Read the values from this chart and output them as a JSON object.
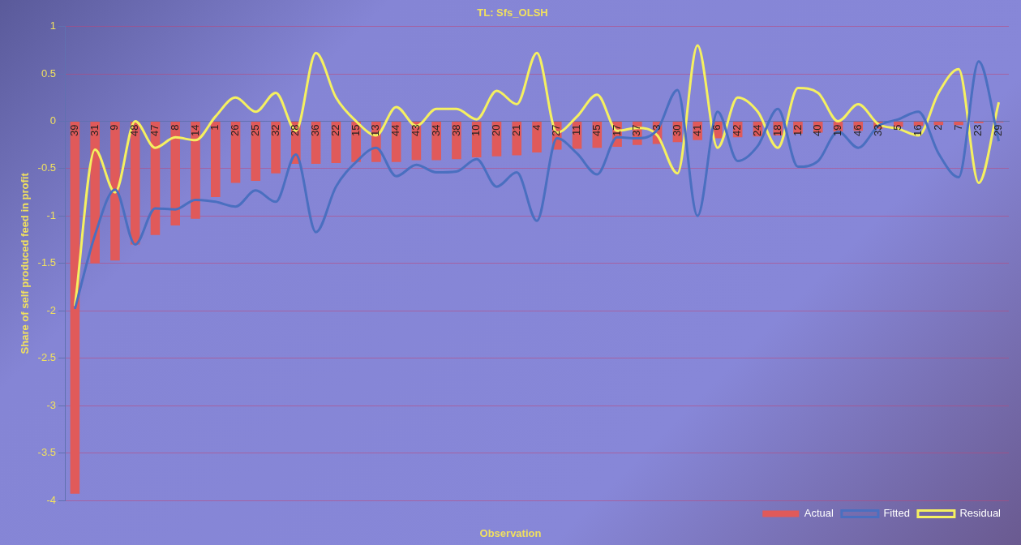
{
  "chart_data": {
    "type": "bar",
    "title": "TL: Sfs_OLSH",
    "xlabel": "Observation",
    "ylabel": "Share of self produced feed in profit",
    "categories": [
      "39",
      "31",
      "9",
      "48",
      "47",
      "8",
      "14",
      "1",
      "26",
      "25",
      "32",
      "28",
      "36",
      "22",
      "15",
      "13",
      "44",
      "43",
      "34",
      "38",
      "10",
      "20",
      "21",
      "4",
      "27",
      "11",
      "45",
      "17",
      "37",
      "3",
      "30",
      "41",
      "6",
      "42",
      "24",
      "18",
      "12",
      "40",
      "19",
      "46",
      "33",
      "5",
      "16",
      "2",
      "7",
      "23",
      "29"
    ],
    "series": [
      {
        "name": "Actual",
        "color": "#e05a5a",
        "values": [
          -3.93,
          -1.5,
          -1.47,
          -1.3,
          -1.2,
          -1.1,
          -1.03,
          -0.8,
          -0.65,
          -0.63,
          -0.55,
          -0.45,
          -0.45,
          -0.44,
          -0.43,
          -0.43,
          -0.43,
          -0.41,
          -0.41,
          -0.4,
          -0.38,
          -0.37,
          -0.36,
          -0.33,
          -0.3,
          -0.29,
          -0.28,
          -0.27,
          -0.25,
          -0.24,
          -0.22,
          -0.2,
          -0.18,
          -0.17,
          -0.16,
          -0.15,
          -0.13,
          -0.12,
          -0.11,
          -0.1,
          -0.08,
          -0.06,
          -0.05,
          -0.04,
          -0.04,
          -0.02,
          -0.01
        ]
      },
      {
        "name": "Fitted",
        "type": "line",
        "color": "#4a6fc0",
        "values": [
          -1.98,
          -1.2,
          -0.72,
          -1.3,
          -0.92,
          -0.93,
          -0.83,
          -0.85,
          -0.9,
          -0.73,
          -0.85,
          -0.35,
          -1.17,
          -0.69,
          -0.43,
          -0.28,
          -0.58,
          -0.46,
          -0.54,
          -0.53,
          -0.4,
          -0.69,
          -0.54,
          -1.05,
          -0.18,
          -0.34,
          -0.56,
          -0.17,
          -0.18,
          -0.09,
          0.33,
          -1.0,
          0.1,
          -0.42,
          -0.26,
          0.13,
          -0.48,
          -0.42,
          -0.11,
          -0.28,
          -0.05,
          0.02,
          0.1,
          -0.34,
          -0.59,
          0.63,
          -0.21
        ]
      },
      {
        "name": "Residual",
        "type": "line",
        "color": "#f5f060",
        "values": [
          -1.95,
          -0.3,
          -0.75,
          0.0,
          -0.28,
          -0.17,
          -0.2,
          0.05,
          0.25,
          0.1,
          0.3,
          -0.1,
          0.72,
          0.25,
          0.0,
          -0.15,
          0.15,
          -0.05,
          0.13,
          0.13,
          0.02,
          0.32,
          0.18,
          0.72,
          -0.12,
          0.05,
          0.28,
          -0.1,
          -0.07,
          -0.15,
          -0.55,
          0.8,
          -0.28,
          0.25,
          0.1,
          -0.28,
          0.35,
          0.3,
          0.0,
          0.18,
          -0.03,
          -0.08,
          -0.15,
          0.3,
          0.55,
          -0.65,
          0.2
        ]
      }
    ],
    "ylim": [
      -4,
      1
    ],
    "yticks": [
      -4,
      -3.5,
      -3,
      -2.5,
      -2,
      -1.5,
      -1,
      -0.5,
      0,
      0.5,
      1
    ],
    "grid": "y",
    "legend": "bottom right",
    "marker": "none",
    "line_style": "solid"
  }
}
